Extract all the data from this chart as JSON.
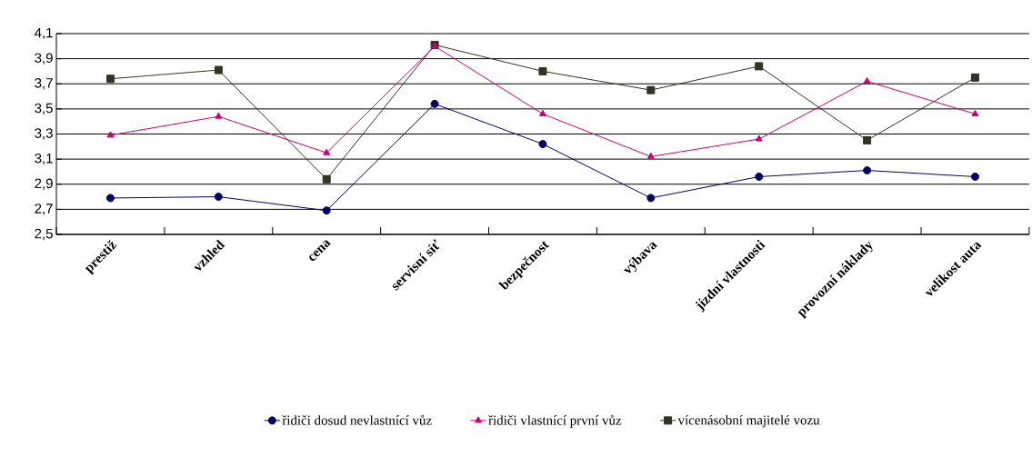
{
  "chart_data": {
    "type": "line",
    "categories": [
      "prestiž",
      "vzhled",
      "cena",
      "servisní síť",
      "bezpečnost",
      "výbava",
      "jízdní vlastnosti",
      "provozní náklady",
      "velikost auta"
    ],
    "series": [
      {
        "name": "řidiči dosud nevlastnící vůz",
        "color": "#000066",
        "marker": "circle",
        "values": [
          2.79,
          2.8,
          2.69,
          3.54,
          3.22,
          2.79,
          2.96,
          3.01,
          2.96
        ]
      },
      {
        "name": "řidiči vlastnící první vůz",
        "color": "#cc0077",
        "marker": "triangle",
        "values": [
          3.29,
          3.44,
          3.15,
          4.0,
          3.46,
          3.12,
          3.26,
          3.72,
          3.46
        ]
      },
      {
        "name": "vícenásobní majitelé vozu",
        "color": "#333322",
        "marker": "square",
        "values": [
          3.74,
          3.81,
          2.94,
          4.01,
          3.8,
          3.65,
          3.84,
          3.25,
          3.75
        ]
      }
    ],
    "ylim": [
      2.5,
      4.1
    ],
    "yticks": [
      {
        "value": 2.5,
        "label": "2,5"
      },
      {
        "value": 2.7,
        "label": "2,7"
      },
      {
        "value": 2.9,
        "label": "2,9"
      },
      {
        "value": 3.1,
        "label": "3,1"
      },
      {
        "value": 3.3,
        "label": "3,3"
      },
      {
        "value": 3.5,
        "label": "3,5"
      },
      {
        "value": 3.7,
        "label": "3,7"
      },
      {
        "value": 3.9,
        "label": "3,9"
      },
      {
        "value": 4.1,
        "label": "4,1"
      }
    ],
    "grid": "y",
    "legend": "bottom",
    "line_style": "solid"
  }
}
